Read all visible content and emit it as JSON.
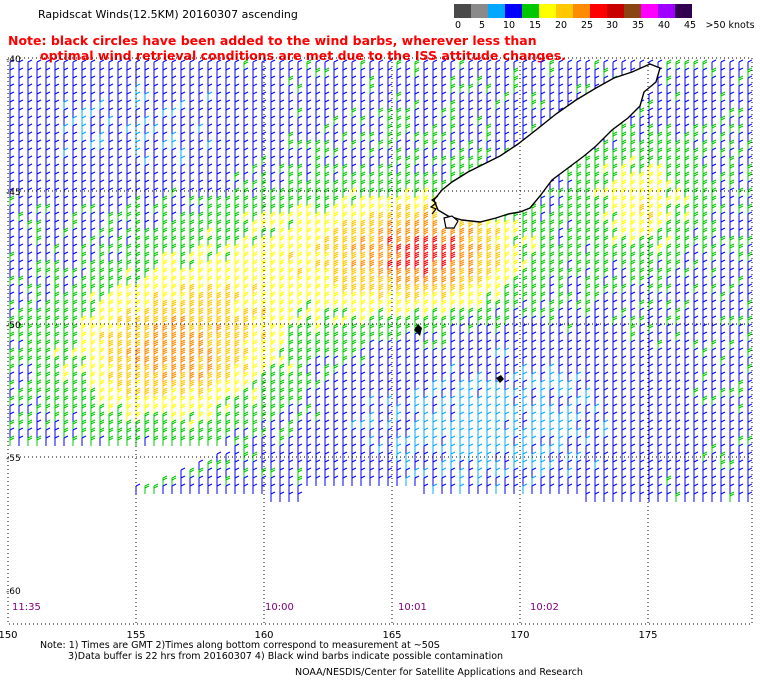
{
  "title": "Rapidscat Winds(12.5KM) 20160307 ascending",
  "note": {
    "line1": "Note: black circles have been added to the wind barbs, wherever less than",
    "line2": "optimal wind retrieval conditions are met due to the ISS attitude changes."
  },
  "legend": {
    "colors": [
      "#4a4a4a",
      "#8a8a8a",
      "#00a8ff",
      "#0000ff",
      "#00c800",
      "#ffff00",
      "#ffc800",
      "#ff8c00",
      "#ff0000",
      "#c80000",
      "#8b4513",
      "#ff00ff",
      "#a000ff",
      "#320050"
    ],
    "ticks": [
      "0",
      "5",
      "10",
      "15",
      "20",
      "25",
      "30",
      "35",
      "40",
      "45",
      ">50 knots"
    ]
  },
  "map": {
    "lat_labels": [
      "-40",
      "-45",
      "-50",
      "-55",
      "-60"
    ],
    "lon_labels": [
      "150",
      "155",
      "160",
      "165",
      "170",
      "175"
    ],
    "time_labels": [
      "11:35",
      "10:00",
      "10:01",
      "10:02"
    ]
  },
  "footer": {
    "line1": "Note: 1) Times are GMT 2)Times along bottom correspond to measurement at ~50S",
    "line2": "3)Data buffer is 22 hrs from 20160307 4) Black wind barbs indicate possible contamination",
    "credit": "NOAA/NESDIS/Center for Satellite Applications and Research"
  }
}
